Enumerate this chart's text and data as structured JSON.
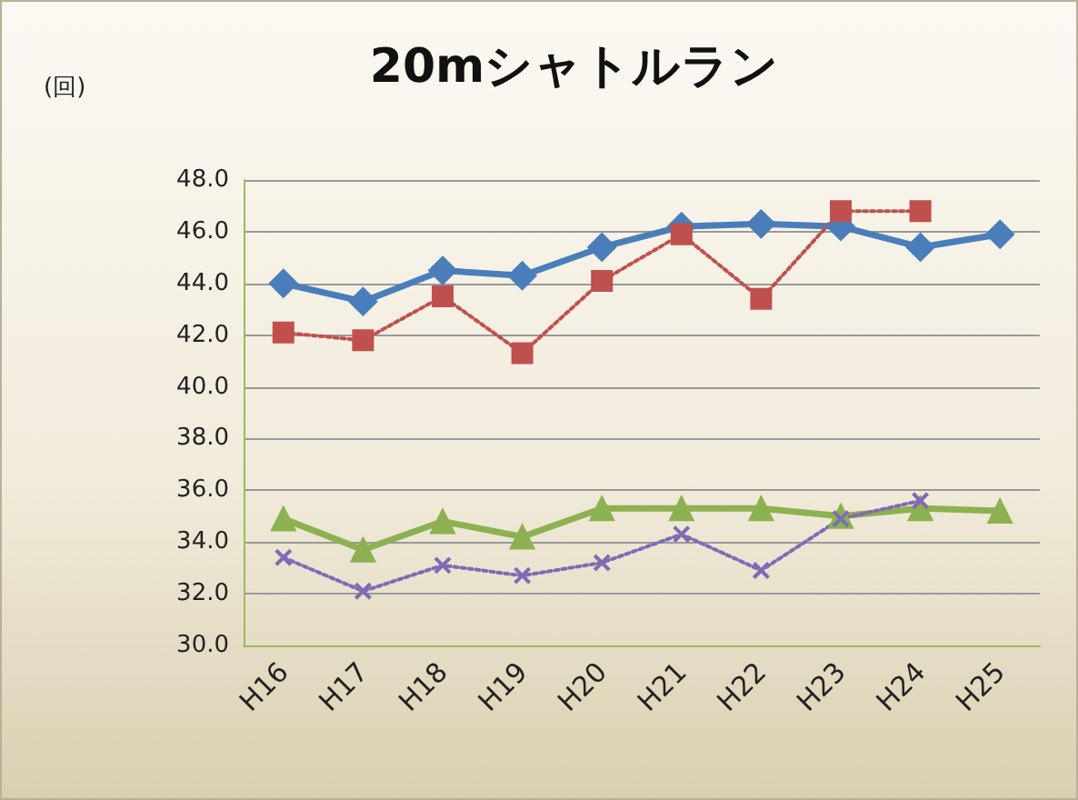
{
  "chart_data": {
    "type": "line",
    "title": "20mシャトルラン",
    "ylabel": "(回)",
    "categories": [
      "H16",
      "H17",
      "H18",
      "H19",
      "H20",
      "H21",
      "H22",
      "H23",
      "H24",
      "H25"
    ],
    "series": [
      {
        "color": "#4a7ebb",
        "marker": "diamond",
        "line_style": "solid",
        "values": [
          44.0,
          43.3,
          44.5,
          44.3,
          45.4,
          46.2,
          46.3,
          46.2,
          45.4,
          45.9
        ]
      },
      {
        "color": "#c0504d",
        "marker": "square",
        "line_style": "dotted",
        "values": [
          42.1,
          41.8,
          43.5,
          41.3,
          44.1,
          45.9,
          43.4,
          46.8,
          46.8,
          null
        ]
      },
      {
        "color": "#8db151",
        "marker": "triangle",
        "line_style": "solid",
        "values": [
          34.9,
          33.7,
          34.8,
          34.2,
          35.3,
          35.3,
          35.3,
          35.0,
          35.3,
          35.2
        ]
      },
      {
        "color": "#7e6bb5",
        "marker": "cross",
        "line_style": "dotted",
        "values": [
          33.4,
          32.1,
          33.1,
          32.7,
          33.2,
          34.3,
          32.9,
          34.9,
          35.6,
          null
        ]
      }
    ],
    "ylim": [
      30,
      48
    ],
    "yticks": [
      {
        "value": 30,
        "label": "30.0"
      },
      {
        "value": 32,
        "label": "32.0"
      },
      {
        "value": 34,
        "label": "34.0"
      },
      {
        "value": 36,
        "label": "36.0"
      },
      {
        "value": 38,
        "label": "38.0"
      },
      {
        "value": 40,
        "label": "40.0"
      },
      {
        "value": 42,
        "label": "42.0"
      },
      {
        "value": 44,
        "label": "44.0"
      },
      {
        "value": 46,
        "label": "46.0"
      },
      {
        "value": 48,
        "label": "48.0"
      }
    ],
    "grid": "y"
  }
}
